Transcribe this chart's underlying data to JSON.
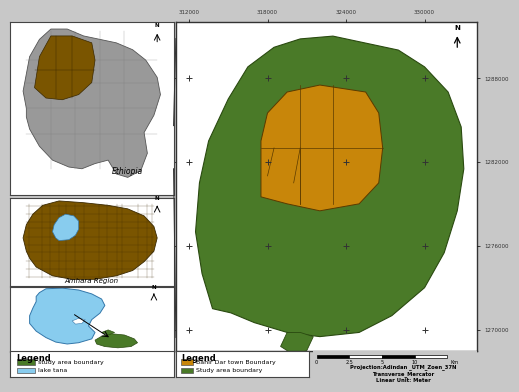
{
  "bg_color": "#c8c8c8",
  "main_map_bg": "#ffffff",
  "inset_bg": "#ffffff",
  "border_color": "#444444",
  "main_map": {
    "xlim": [
      311000,
      334000
    ],
    "ylim": [
      1268500,
      1292000
    ],
    "xticks": [
      312000,
      318000,
      324000,
      330000
    ],
    "yticks": [
      1270000,
      1276000,
      1282000,
      1288000
    ],
    "study_area_color": "#4a7a28",
    "town_color": "#c8860a",
    "town_border": "#5a3a00",
    "study_border": "#2a4a10",
    "cross_color": "#333333"
  },
  "ethiopia_color": "#999999",
  "ethiopia_border": "#555555",
  "amhara_color": "#7a5500",
  "amhara_border": "#3a2800",
  "lake_tana_color": "#88ccee",
  "lake_tana_border": "#3377aa",
  "study_small_color": "#4a7a28",
  "study_small_border": "#2a4a10",
  "legend_left_title": "Legend",
  "legend_left_items": [
    {
      "label": "study area boundary",
      "color": "#4a7a28"
    },
    {
      "label": "lake tana",
      "color": "#88ccee"
    }
  ],
  "legend_main_title": "Legend",
  "legend_main_items": [
    {
      "label": "Bahir Dar town Boundary",
      "color": "#c8860a"
    },
    {
      "label": "Study area boundary",
      "color": "#4a7a28"
    }
  ],
  "projection_text": "Projection:Adindan _UTM_Zoen_37N\nTransverse_Mercator\nLinear Unit: Meter",
  "scale_bar_label": "Km",
  "scale_bar_ticks": [
    "0",
    "2.5",
    "5",
    "10"
  ],
  "ethiopia_label": "Ethiopia",
  "amhara_label": "Amhara Region"
}
